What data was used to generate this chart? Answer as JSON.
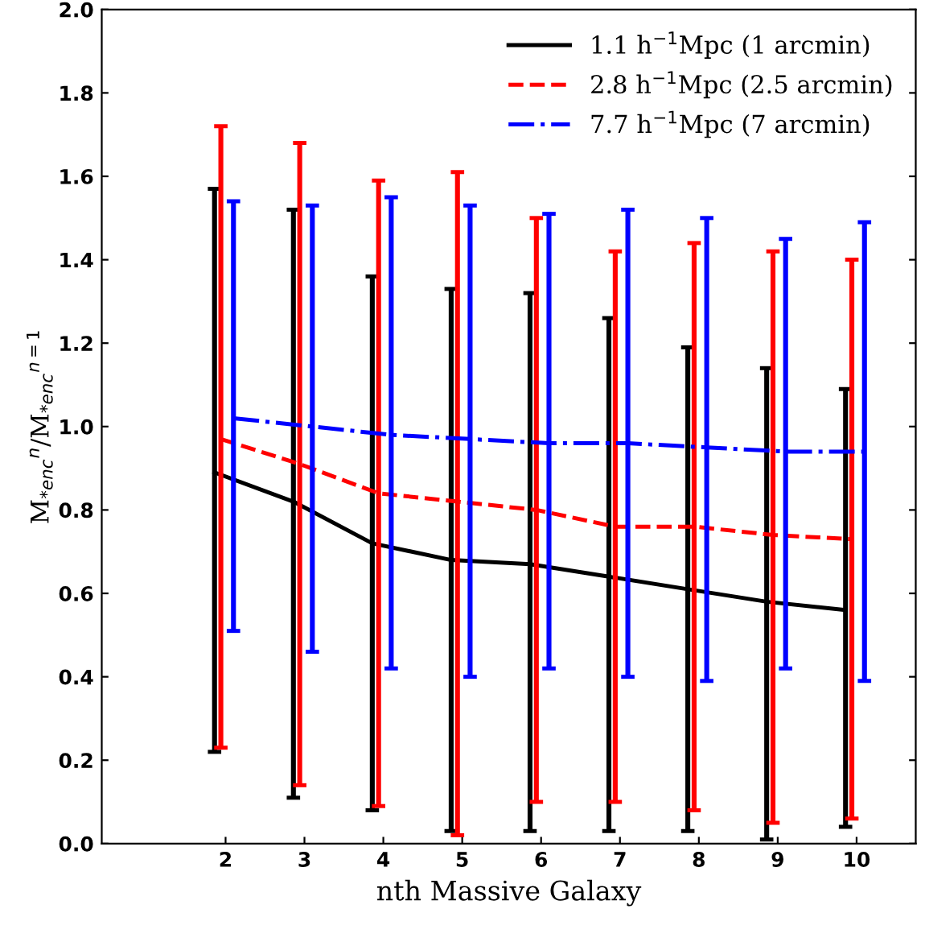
{
  "chart_data": {
    "type": "line",
    "xlabel": "nth Massive Galaxy",
    "ylabel": "M$_{*enc}$$^{n}$/M$_{*enc}$$^{n=1}$",
    "xlim": [
      0.43,
      10.75
    ],
    "xticks": [
      2,
      3,
      4,
      5,
      6,
      7,
      8,
      9,
      10
    ],
    "ylim": [
      0,
      2
    ],
    "yticks": [
      {
        "value": 0,
        "label": "0.0"
      },
      {
        "value": 0.2,
        "label": "0.2"
      },
      {
        "value": 0.4,
        "label": "0.4"
      },
      {
        "value": 0.6,
        "label": "0.6"
      },
      {
        "value": 0.8,
        "label": "0.8"
      },
      {
        "value": 1,
        "label": "1.0"
      },
      {
        "value": 1.2,
        "label": "1.2"
      },
      {
        "value": 1.4,
        "label": "1.4"
      },
      {
        "value": 1.6,
        "label": "1.6"
      },
      {
        "value": 1.8,
        "label": "1.8"
      },
      {
        "value": 2,
        "label": "2.0"
      }
    ],
    "grid": false,
    "legend": "top right",
    "marker": "none",
    "series": [
      {
        "name": "1.1 h$^{−1}$Mpc (1 arcmin)",
        "color": "#000000",
        "line_style": "solid",
        "x": [
          1.86,
          2.86,
          3.86,
          4.86,
          5.86,
          6.86,
          7.86,
          8.86,
          9.86
        ],
        "values": [
          0.89,
          0.82,
          0.72,
          0.68,
          0.67,
          0.64,
          0.61,
          0.58,
          0.56
        ],
        "errors": [
          [
            0.22,
            1.57
          ],
          [
            0.11,
            1.52
          ],
          [
            0.08,
            1.36
          ],
          [
            0.03,
            1.33
          ],
          [
            0.03,
            1.32
          ],
          [
            0.03,
            1.26
          ],
          [
            0.03,
            1.19
          ],
          [
            0.01,
            1.14
          ],
          [
            0.04,
            1.09
          ]
        ]
      },
      {
        "name": "2.8 h$^{−1}$Mpc (2.5 arcmin)",
        "color": "#ff0000",
        "line_style": "dashed",
        "x": [
          1.94,
          2.94,
          3.94,
          4.94,
          5.94,
          6.94,
          7.94,
          8.94,
          9.94
        ],
        "values": [
          0.97,
          0.91,
          0.84,
          0.82,
          0.8,
          0.76,
          0.76,
          0.74,
          0.73
        ],
        "errors": [
          [
            0.23,
            1.72
          ],
          [
            0.14,
            1.68
          ],
          [
            0.09,
            1.59
          ],
          [
            0.02,
            1.61
          ],
          [
            0.1,
            1.5
          ],
          [
            0.1,
            1.42
          ],
          [
            0.08,
            1.44
          ],
          [
            0.05,
            1.42
          ],
          [
            0.06,
            1.4
          ]
        ]
      },
      {
        "name": "7.7 h$^{−1}$Mpc (7 arcmin)",
        "color": "#0000ff",
        "line_style": "dashdot",
        "x": [
          2.1,
          3.1,
          4.1,
          5.1,
          6.1,
          7.1,
          8.1,
          9.1,
          10.1
        ],
        "values": [
          1.02,
          1.0,
          0.98,
          0.97,
          0.96,
          0.96,
          0.95,
          0.94,
          0.94
        ],
        "errors": [
          [
            0.51,
            1.54
          ],
          [
            0.46,
            1.53
          ],
          [
            0.42,
            1.55
          ],
          [
            0.4,
            1.53
          ],
          [
            0.42,
            1.51
          ],
          [
            0.4,
            1.52
          ],
          [
            0.39,
            1.5
          ],
          [
            0.42,
            1.45
          ],
          [
            0.39,
            1.49
          ]
        ]
      }
    ]
  }
}
